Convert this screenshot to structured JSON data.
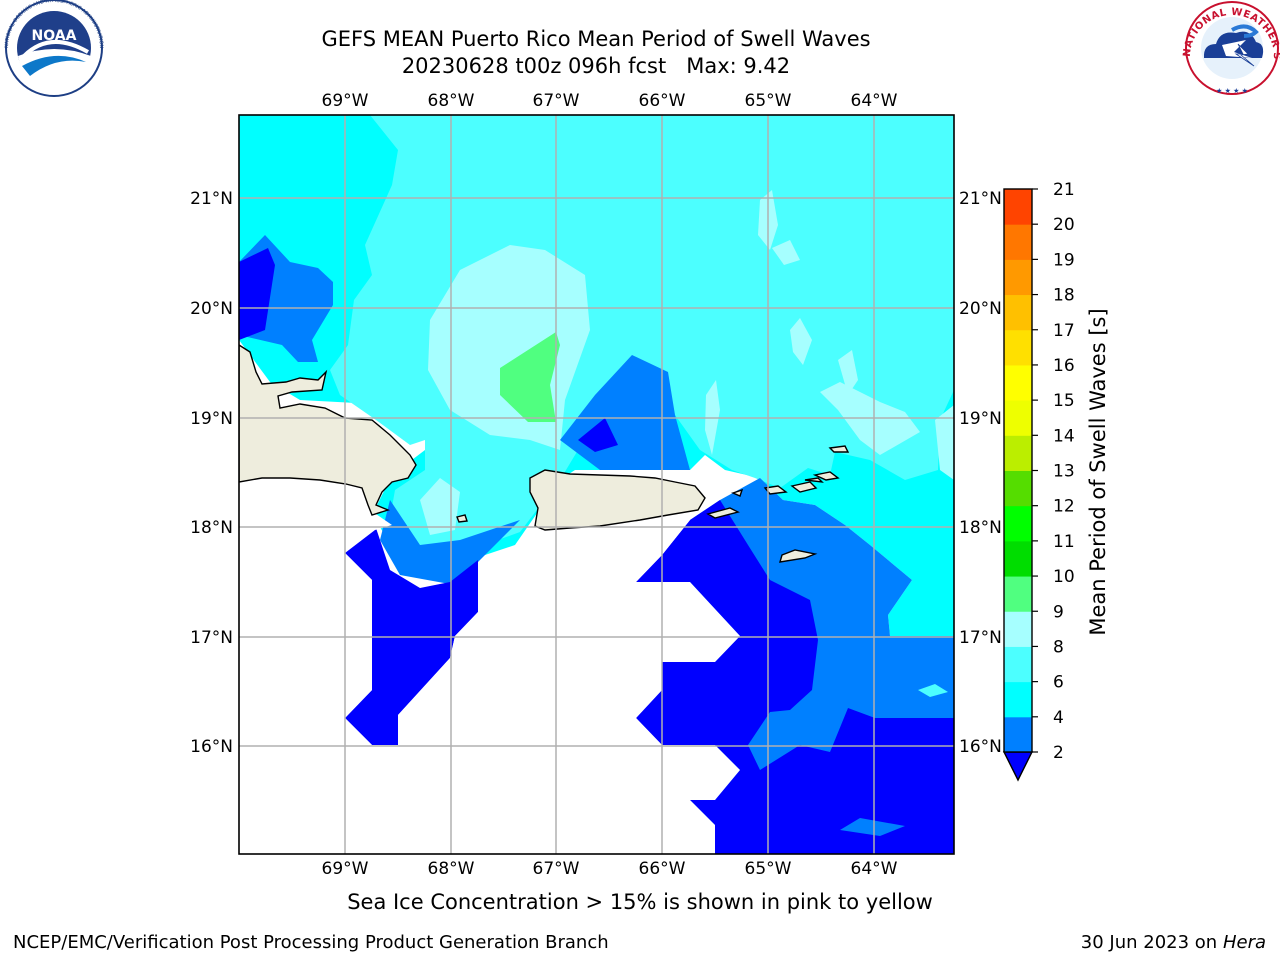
{
  "header": {
    "title_line1": "GEFS MEAN Puerto Rico Mean Period of Swell Waves",
    "title_line2": "20230628 t00z 096h fcst   Max: 9.42"
  },
  "logos": {
    "left_logo_text": "NOAA",
    "left_ring_text": "NATIONAL OCEANIC AND ATMOSPHERIC ADMINISTRATION · U.S. DEPARTMENT OF COMMERCE",
    "right_ring_text": "NATIONAL WEATHER SERVICE"
  },
  "map": {
    "lon_labels": [
      "69°W",
      "68°W",
      "67°W",
      "66°W",
      "65°W",
      "64°W"
    ],
    "lat_labels": [
      "21°N",
      "20°N",
      "19°N",
      "18°N",
      "17°N",
      "16°N"
    ],
    "land_color": "#eeeddd",
    "gridline_color": "#b0b0b0"
  },
  "colorbar": {
    "label": "Mean Period of Swell Waves [s]",
    "ticks": [
      "2",
      "4",
      "6",
      "8",
      "9",
      "10",
      "11",
      "12",
      "13",
      "14",
      "15",
      "16",
      "17",
      "18",
      "19",
      "20",
      "21"
    ],
    "colors": [
      "#0000ff",
      "#0080ff",
      "#00ffff",
      "#4cffff",
      "#a6ffff",
      "#50ff80",
      "#00dd00",
      "#00ff00",
      "#55dd00",
      "#bbee00",
      "#eeff00",
      "#ffff00",
      "#ffe000",
      "#ffc000",
      "#ff9900",
      "#ff7700",
      "#ff4400",
      "#ff0000"
    ]
  },
  "caption": "Sea Ice Concentration > 15% is shown in pink to yellow",
  "footer": {
    "left": "NCEP/EMC/Verification Post Processing Product Generation Branch",
    "right_date": "30 Jun 2023 on",
    "right_machine": "Hera"
  }
}
